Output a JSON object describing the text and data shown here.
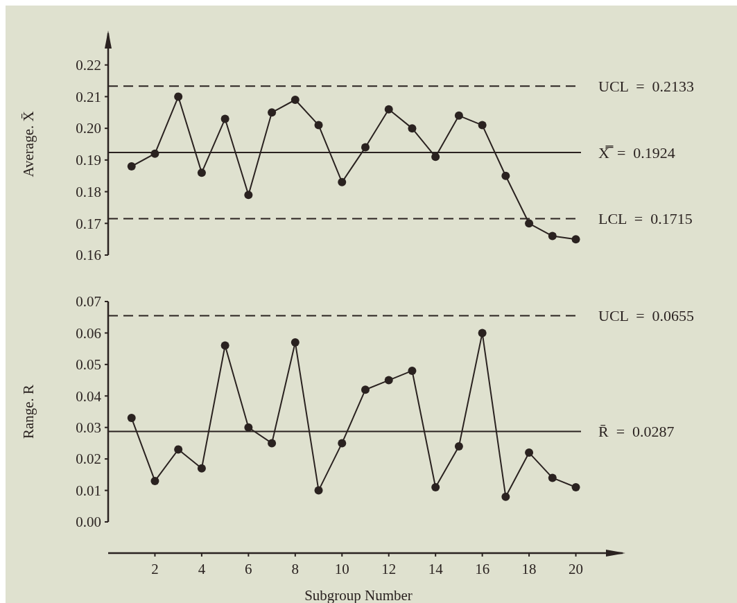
{
  "chart_data": [
    {
      "type": "line",
      "ylabel": "Average. X̄",
      "x": [
        1,
        2,
        3,
        4,
        5,
        6,
        7,
        8,
        9,
        10,
        11,
        12,
        13,
        14,
        15,
        16,
        17,
        18,
        19,
        20
      ],
      "ylim": [
        0.16,
        0.23
      ],
      "yticks": [
        0.16,
        0.17,
        0.18,
        0.19,
        {
          "value": 0.2,
          "label": "0.20"
        },
        0.21,
        0.22
      ],
      "tick_labels": "y",
      "grid": false,
      "marker": "circle",
      "series": [
        {
          "color": "#2a2220",
          "values": [
            0.188,
            0.192,
            0.21,
            0.186,
            0.203,
            0.179,
            0.205,
            0.209,
            0.201,
            0.183,
            0.194,
            0.206,
            0.2,
            0.191,
            0.204,
            0.201,
            0.185,
            0.17,
            0.166,
            0.165
          ]
        }
      ],
      "ref_lines": [
        {
          "axis": "y",
          "value": 0.2133,
          "label": "UCL  =  0.2133",
          "line_style": "dashed",
          "color": "#2a2220"
        },
        {
          "axis": "y",
          "value": 0.1924,
          "label": "X̿  =  0.1924",
          "line_style": "solid",
          "color": "#2a2220"
        },
        {
          "axis": "y",
          "value": 0.1715,
          "label": "LCL  =  0.1715",
          "line_style": "dashed",
          "color": "#2a2220"
        }
      ]
    },
    {
      "type": "line",
      "ylabel": "Range. R",
      "xlabel": "Subgroup Number",
      "x": [
        1,
        2,
        3,
        4,
        5,
        6,
        7,
        8,
        9,
        10,
        11,
        12,
        13,
        14,
        15,
        16,
        17,
        18,
        19,
        20
      ],
      "xlim": [
        0,
        22
      ],
      "xticks": [
        2,
        4,
        6,
        8,
        10,
        12,
        14,
        16,
        18,
        20
      ],
      "ylim": [
        0,
        0.07
      ],
      "yticks": [
        {
          "value": 0,
          "label": "0.00"
        },
        0.01,
        0.02,
        0.03,
        0.04,
        0.05,
        0.06,
        0.07
      ],
      "grid": false,
      "marker": "circle",
      "series": [
        {
          "color": "#2a2220",
          "values": [
            0.033,
            0.013,
            0.023,
            0.017,
            0.056,
            0.03,
            0.025,
            0.057,
            0.01,
            0.025,
            0.042,
            0.045,
            0.048,
            0.011,
            0.024,
            0.06,
            0.008,
            0.022,
            0.014,
            0.011
          ]
        }
      ],
      "ref_lines": [
        {
          "axis": "y",
          "value": 0.0655,
          "label": "UCL  =  0.0655",
          "line_style": "dashed",
          "color": "#2a2220"
        },
        {
          "axis": "y",
          "value": 0.0287,
          "label": "R̄  =  0.0287",
          "line_style": "solid",
          "color": "#2a2220"
        }
      ]
    }
  ]
}
